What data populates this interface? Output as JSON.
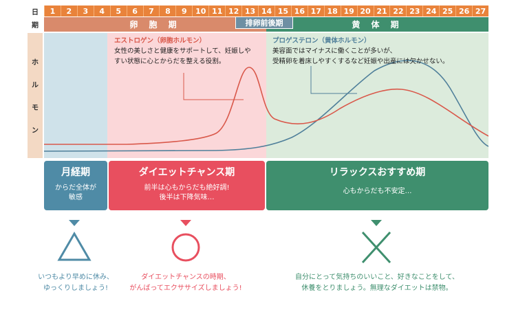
{
  "header": {
    "day_label": "日",
    "period_label": "期",
    "days": [
      "1",
      "2",
      "3",
      "4",
      "5",
      "6",
      "7",
      "8",
      "9",
      "10",
      "11",
      "12",
      "13",
      "14",
      "15",
      "16",
      "17",
      "18",
      "19",
      "20",
      "21",
      "22",
      "23",
      "24",
      "25",
      "26",
      "27"
    ]
  },
  "phases": {
    "follicular": "卵 胞 期",
    "ovulation": "排卵前後期",
    "luteal": "黄 体 期"
  },
  "hormone_label": [
    "ホ",
    "ル",
    "モ",
    "ン"
  ],
  "estrogen": {
    "name": "エストロゲン（卵胞ホルモン）",
    "desc_line1": "女性の美しさと健康をサポートして、妊娠しや",
    "desc_line2": "すい状態に心とからだを整える役割。"
  },
  "progesterone": {
    "name": "プロゲステロン（黄体ホルモン）",
    "desc_line1": "美容面ではマイナスに働くことが多いが、",
    "desc_line2": "受精卵を着床しやすくするなど妊娠や出産には欠かせない。"
  },
  "cards": {
    "menstrual": {
      "title": "月経期",
      "desc_line1": "からだ全体が",
      "desc_line2": "敏感"
    },
    "diet": {
      "title": "ダイエットチャンス期",
      "desc_line1": "前半は心もからだも絶好調!",
      "desc_line2": "後半は下降気味…"
    },
    "relax": {
      "title": "リラックスおすすめ期",
      "desc_line1": "心もからだも不安定…"
    }
  },
  "advice": {
    "menstrual_line1": "いつもより早めに休み、",
    "menstrual_line2": "ゆっくりしましょう!",
    "diet_line1": "ダイエットチャンスの時期、",
    "diet_line2": "がんばってエクササイズしましょう!",
    "relax_line1": "自分にとって気持ちのいいこと、好きなことをして、",
    "relax_line2": "休養をとりましょう。無理なダイエットは禁物。"
  },
  "colors": {
    "orange": "#e9833b",
    "follicular": "#d98a6b",
    "green": "#3f8f6e",
    "blue": "#4f8ba6",
    "red": "#e84f5f",
    "estrogen_line": "#d9584a",
    "progesterone_line": "#4f7f9a"
  }
}
